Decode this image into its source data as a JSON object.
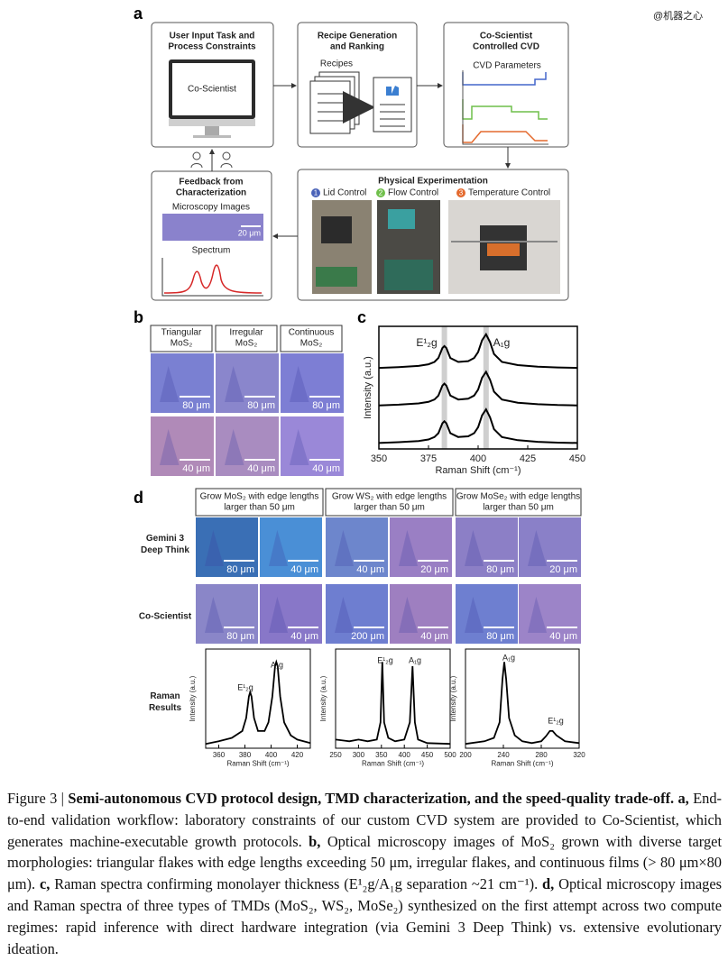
{
  "watermark": "@机器之心",
  "panel_a": {
    "label": "a",
    "user_input": {
      "title_lines": [
        "User Input Task and",
        "Process Constraints"
      ],
      "screen": "Co-Scientist"
    },
    "recipes": {
      "title_lines": [
        "Recipe Generation",
        "and Ranking"
      ],
      "stack_label": "Recipes"
    },
    "cvd": {
      "title_lines": [
        "Co-Scientist",
        "Controlled CVD"
      ],
      "plot_label": "CVD Parameters"
    },
    "experiment": {
      "title": "Physical Experimentation",
      "items": [
        {
          "number": "1",
          "label": "Lid Control"
        },
        {
          "number": "2",
          "label": "Flow Control"
        },
        {
          "number": "3",
          "label": "Temperature Control"
        }
      ]
    },
    "feedback": {
      "title_lines": [
        "Feedback from",
        "Characterization"
      ],
      "images_label": "Microscopy Images",
      "scale_bar": "20 μm",
      "spectrum_label": "Spectrum"
    }
  },
  "panel_b": {
    "label": "b",
    "columns": [
      {
        "lines": [
          "Triangular",
          "MoS₂"
        ]
      },
      {
        "lines": [
          "Irregular",
          "MoS₂"
        ]
      },
      {
        "lines": [
          "Continuous",
          "MoS₂"
        ]
      }
    ],
    "scale_bars": [
      [
        "80 μm",
        "80 μm",
        "80 μm"
      ],
      [
        "40 μm",
        "40 μm",
        "40 μm"
      ]
    ]
  },
  "panel_c": {
    "label": "c"
  },
  "panel_d": {
    "label": "d",
    "columns": [
      {
        "lines": [
          "Grow MoS₂ with edge lengths",
          "larger than 50 μm"
        ]
      },
      {
        "lines": [
          "Grow WS₂ with edge lengths",
          "larger than 50 μm"
        ]
      },
      {
        "lines": [
          "Grow MoSe₂ with edge lengths",
          "larger than 50 μm"
        ]
      }
    ],
    "rows": [
      {
        "lines": [
          "Gemini 3",
          "Deep Think"
        ],
        "scale_bars": [
          "80 μm",
          "40 μm",
          "40 μm",
          "20 μm",
          "80 μm",
          "20 μm"
        ]
      },
      {
        "lines": [
          "Co-Scientist"
        ],
        "scale_bars": [
          "80 μm",
          "40 μm",
          "200 μm",
          "40 μm",
          "80 μm",
          "40 μm"
        ]
      },
      {
        "lines": [
          "Raman",
          "Results"
        ]
      }
    ]
  },
  "chart_data": [
    {
      "type": "line",
      "x_label": "Raman Shift (cm⁻¹)",
      "y_label": "Intensity (a.u.)",
      "xlim": [
        350,
        450
      ],
      "xticks": [
        350,
        375,
        400,
        425,
        450
      ],
      "ylim": [
        -0.1,
        3.0
      ],
      "highlight_x": [
        383,
        404
      ],
      "annotations": [
        "E¹₂g",
        "A₁g"
      ],
      "series": [
        {
          "color": "#000000",
          "x": [
            350,
            360,
            370,
            375,
            378,
            380,
            382,
            383,
            384,
            386,
            390,
            395,
            398,
            400,
            402,
            404,
            406,
            408,
            412,
            420,
            430,
            440,
            450
          ],
          "values": [
            1.95,
            1.97,
            2.0,
            2.04,
            2.1,
            2.2,
            2.45,
            2.5,
            2.45,
            2.2,
            2.1,
            2.12,
            2.2,
            2.35,
            2.65,
            2.8,
            2.6,
            2.3,
            2.1,
            2.02,
            1.98,
            1.96,
            1.95
          ]
        },
        {
          "color": "#000000",
          "x": [
            350,
            360,
            370,
            375,
            378,
            380,
            382,
            383,
            384,
            386,
            390,
            395,
            398,
            400,
            402,
            404,
            406,
            408,
            412,
            420,
            430,
            440,
            450
          ],
          "values": [
            1.0,
            1.02,
            1.05,
            1.09,
            1.15,
            1.25,
            1.5,
            1.55,
            1.5,
            1.25,
            1.15,
            1.17,
            1.25,
            1.4,
            1.7,
            1.85,
            1.65,
            1.35,
            1.15,
            1.07,
            1.03,
            1.01,
            1.0
          ]
        },
        {
          "color": "#000000",
          "x": [
            350,
            360,
            370,
            375,
            378,
            380,
            382,
            383,
            384,
            386,
            390,
            395,
            398,
            400,
            402,
            404,
            406,
            408,
            412,
            420,
            430,
            440,
            450
          ],
          "values": [
            0.05,
            0.07,
            0.1,
            0.14,
            0.2,
            0.3,
            0.55,
            0.6,
            0.55,
            0.3,
            0.2,
            0.22,
            0.3,
            0.45,
            0.75,
            0.9,
            0.7,
            0.4,
            0.2,
            0.12,
            0.08,
            0.06,
            0.05
          ]
        }
      ]
    },
    {
      "type": "line",
      "x_label": "Raman Shift (cm⁻¹)",
      "y_label": "Intensity (a.u.)",
      "xlim": [
        350,
        430
      ],
      "xticks": [
        360,
        380,
        400,
        420
      ],
      "ylim": [
        0,
        1.15
      ],
      "annotations": [
        "E¹₂g",
        "A₁g"
      ],
      "series": [
        {
          "color": "#000000",
          "x": [
            350,
            360,
            370,
            378,
            381,
            383,
            384,
            385,
            387,
            390,
            395,
            398,
            401,
            403,
            404,
            405,
            407,
            410,
            415,
            420,
            430
          ],
          "values": [
            0.05,
            0.08,
            0.12,
            0.2,
            0.35,
            0.6,
            0.65,
            0.6,
            0.35,
            0.2,
            0.2,
            0.3,
            0.6,
            0.95,
            1.0,
            0.95,
            0.6,
            0.3,
            0.15,
            0.1,
            0.06
          ]
        }
      ]
    },
    {
      "type": "line",
      "x_label": "Raman Shift (cm⁻¹)",
      "y_label": "Intensity (a.u.)",
      "xlim": [
        250,
        500
      ],
      "xticks": [
        250,
        300,
        350,
        400,
        450,
        500
      ],
      "ylim": [
        0,
        1.15
      ],
      "annotations": [
        "E¹₂g",
        "A₁g"
      ],
      "series": [
        {
          "color": "#000000",
          "x": [
            250,
            280,
            300,
            320,
            340,
            348,
            352,
            356,
            365,
            380,
            400,
            412,
            418,
            423,
            430,
            450,
            500
          ],
          "values": [
            0.1,
            0.08,
            0.1,
            0.08,
            0.1,
            0.3,
            1.0,
            0.3,
            0.12,
            0.08,
            0.1,
            0.3,
            0.95,
            0.3,
            0.1,
            0.06,
            0.05
          ]
        }
      ]
    },
    {
      "type": "line",
      "x_label": "Raman Shift (cm⁻¹)",
      "y_label": "Intensity (a.u.)",
      "xlim": [
        200,
        320
      ],
      "xticks": [
        200,
        240,
        280,
        320
      ],
      "ylim": [
        0,
        1.15
      ],
      "annotations": [
        "A₁g",
        "E¹₂g"
      ],
      "series": [
        {
          "color": "#000000",
          "x": [
            200,
            220,
            230,
            236,
            239,
            241,
            243,
            246,
            252,
            260,
            270,
            280,
            285,
            289,
            292,
            296,
            305,
            320
          ],
          "values": [
            0.05,
            0.08,
            0.12,
            0.3,
            0.8,
            1.0,
            0.8,
            0.35,
            0.15,
            0.08,
            0.06,
            0.08,
            0.14,
            0.2,
            0.2,
            0.15,
            0.08,
            0.06
          ]
        }
      ]
    }
  ],
  "caption": {
    "runs": [
      "Figure 3 | ",
      "Semi-autonomous CVD protocol design, TMD characterization, and the speed-quality trade-off.",
      " a,",
      " End-to-end validation workflow: laboratory constraints of our custom CVD system are provided to Co-Scientist, which generates machine-executable growth protocols.",
      " b,",
      " Optical microscopy images of MoS₂ grown with diverse target morphologies: triangular flakes with edge lengths exceeding 50 μm, irregular flakes, and continuous films (> 80 μm×80 μm).",
      " c,",
      " Raman spectra confirming monolayer thickness (E¹₂g/A₁g separation ~21 cm⁻¹).",
      " d,",
      " Optical microscopy images and Raman spectra of three types of TMDs (MoS₂, WS₂, MoSe₂) synthesized on the first attempt across two compute regimes: rapid inference with direct hardware integration (via Gemini 3 Deep Think) vs. extensive evolutionary ideation."
    ]
  }
}
